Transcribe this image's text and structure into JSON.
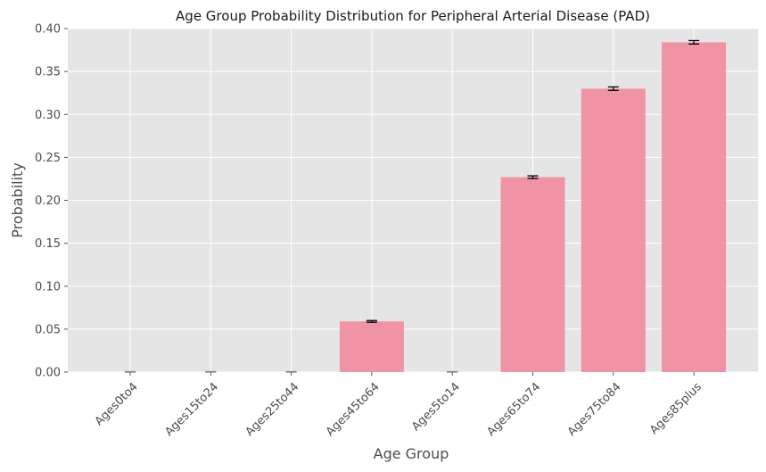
{
  "chart_data": {
    "type": "bar",
    "title": "Age Group Probability Distribution for Peripheral Arterial Disease (PAD)",
    "xlabel": "Age Group",
    "ylabel": "Probability",
    "categories": [
      "Ages0to4",
      "Ages15to24",
      "Ages25to44",
      "Ages45to64",
      "Ages5to14",
      "Ages65to74",
      "Ages75to84",
      "Ages85plus"
    ],
    "values": [
      0.0,
      0.0,
      0.0,
      0.059,
      0.0,
      0.227,
      0.33,
      0.384
    ],
    "error": [
      0.0005,
      0.0005,
      0.0005,
      0.001,
      0.0005,
      0.0015,
      0.002,
      0.002
    ],
    "ylim": [
      0,
      0.4
    ],
    "yticks": [
      "0.00",
      "0.05",
      "0.10",
      "0.15",
      "0.20",
      "0.25",
      "0.30",
      "0.35",
      "0.40"
    ],
    "grid": true,
    "bar_color": "#f08ca0",
    "plot_background": "#e5e5e5",
    "grid_color": "#ffffff"
  }
}
